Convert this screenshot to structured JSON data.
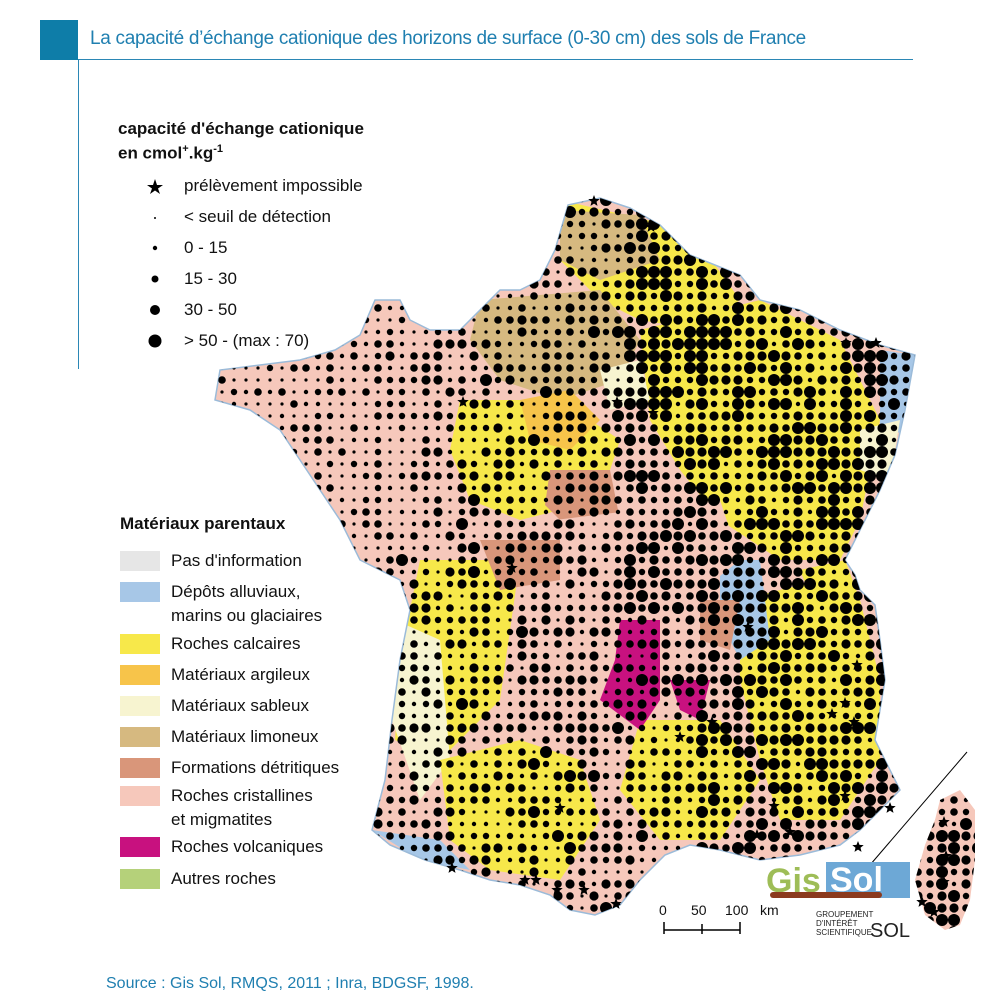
{
  "header": {
    "title": "La capacité d’échange cationique des horizons de surface (0-30 cm) des sols de France",
    "accent_color": "#0e7da8"
  },
  "cec_legend": {
    "title_line1": "capacité d'échange cationique",
    "title_line2_base": "en cmol",
    "title_line2_sup1": "+",
    "title_line2_mid": ".kg",
    "title_line2_sup2": "-1",
    "items": [
      {
        "symbol": "star-icon",
        "label": "prélèvement impossible"
      },
      {
        "symbol": "tiny-dot",
        "label": "< seuil de détection"
      },
      {
        "symbol": "dot-small",
        "label": "0 - 15"
      },
      {
        "symbol": "dot-medium",
        "label": "15 - 30"
      },
      {
        "symbol": "dot-large",
        "label": "30 - 50"
      },
      {
        "symbol": "dot-xlarge",
        "label": "> 50 - (max : 70)"
      }
    ]
  },
  "materials_legend": {
    "title": "Matériaux parentaux",
    "items": [
      {
        "label": "Pas d'information",
        "color": "#e6e6e6"
      },
      {
        "label": "Dépôts alluviaux,",
        "label2": "marins ou glaciaires",
        "color": "#a7c7e7"
      },
      {
        "label": "Roches calcaires",
        "color": "#f7e84a"
      },
      {
        "label": "Matériaux argileux",
        "color": "#f7c44a"
      },
      {
        "label": "Matériaux sableux",
        "color": "#f7f4d0"
      },
      {
        "label": "Matériaux limoneux",
        "color": "#d6b980"
      },
      {
        "label": "Formations détritiques",
        "color": "#d9967a"
      },
      {
        "label": "Roches cristallines",
        "label2": "et migmatites",
        "color": "#f6c8bb"
      },
      {
        "label": "Roches volcaniques",
        "color": "#c8117f"
      },
      {
        "label": "Autres roches",
        "color": "#b5d17a"
      }
    ]
  },
  "scale": {
    "ticks": [
      "0",
      "50",
      "100"
    ],
    "unit": "km"
  },
  "logo": {
    "part1": "Gis",
    "part2": "Sol",
    "sub_line1": "GROUPEMENT",
    "sub_line2": "D'INTÉRÊT",
    "sub_line3": "SCIENTIFIQUE",
    "sub_big": "SOL"
  },
  "source": "Source : Gis Sol, RMQS, 2011 ; Inra, BDGSF, 1998."
}
